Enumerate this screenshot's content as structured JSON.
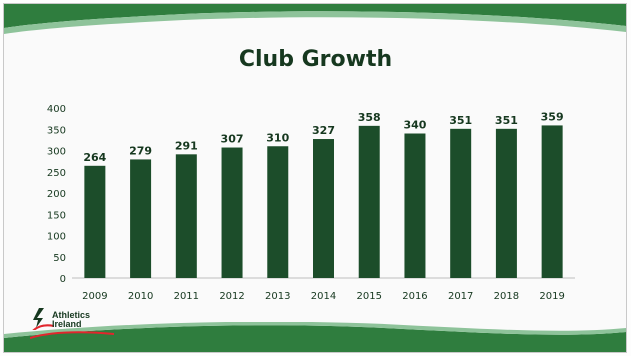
{
  "slide": {
    "title": "Club Growth",
    "colors": {
      "bar": "#1c4d2a",
      "band": "#2f7d3e",
      "band_light": "#8ec39a",
      "text": "#16381f",
      "logo_swoosh": "#e1262d"
    }
  },
  "logo": {
    "line1": "Athletics",
    "line2": "Ireland"
  },
  "chart_data": {
    "type": "bar",
    "title": "Club Growth",
    "categories": [
      "2009",
      "2010",
      "2011",
      "2012",
      "2013",
      "2014",
      "2015",
      "2016",
      "2017",
      "2018",
      "2019"
    ],
    "values": [
      264,
      279,
      291,
      307,
      310,
      327,
      358,
      340,
      351,
      351,
      359
    ],
    "ylim": [
      0,
      400
    ],
    "yticks": [
      0,
      50,
      100,
      150,
      200,
      250,
      300,
      350,
      400
    ],
    "xlabel": "",
    "ylabel": "",
    "grid": false,
    "data_labels": true,
    "legend": "none"
  }
}
